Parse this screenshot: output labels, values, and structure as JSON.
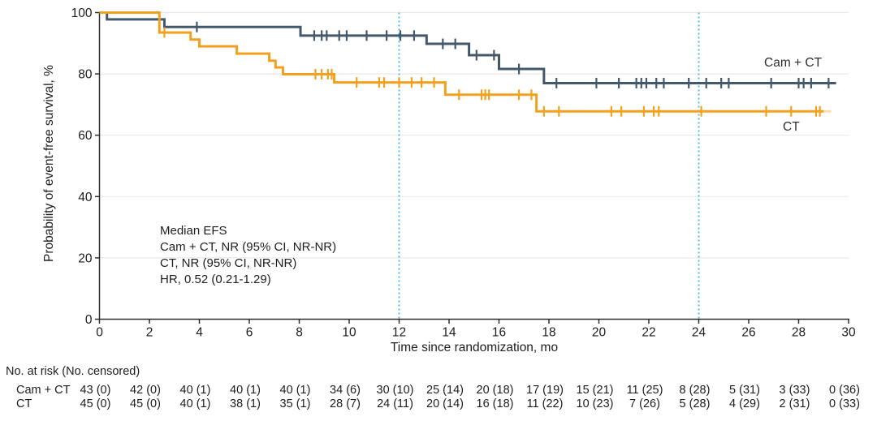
{
  "chart_data": {
    "type": "line",
    "subtype": "kaplan-meier-step",
    "title": "",
    "xlabel": "Time since randomization, mo",
    "ylabel": "Probability of event-free survival, %",
    "xlim": [
      0,
      30
    ],
    "ylim": [
      0,
      100
    ],
    "xticks": [
      0,
      2,
      4,
      6,
      8,
      10,
      12,
      14,
      16,
      18,
      20,
      22,
      24,
      26,
      28,
      30
    ],
    "yticks": [
      0,
      20,
      40,
      60,
      80,
      100
    ],
    "grid": "horizontal-light",
    "legend_position": "inline-right-of-curves",
    "reference_lines_x": [
      12,
      24
    ],
    "annotation": {
      "lines": [
        "Median EFS",
        "Cam + CT, NR (95% CI, NR-NR)",
        "CT, NR (95% CI, NR-NR)",
        "HR, 0.52 (0.21-1.29)"
      ]
    },
    "series": [
      {
        "name": "Cam + CT",
        "color": "#44586B",
        "steps": [
          [
            0,
            100
          ],
          [
            0.3,
            97.8
          ],
          [
            2.6,
            95.3
          ],
          [
            8.05,
            92.5
          ],
          [
            13.1,
            89.8
          ],
          [
            14.8,
            86.1
          ],
          [
            16.0,
            81.6
          ],
          [
            17.8,
            77.0
          ]
        ],
        "end_time": 29.5,
        "censor_times": [
          3.9,
          8.6,
          8.9,
          9.1,
          9.6,
          9.9,
          10.7,
          11.5,
          12.05,
          12.6,
          13.75,
          14.25,
          15.1,
          15.8,
          16.8,
          18.3,
          19.9,
          20.8,
          21.5,
          21.7,
          21.9,
          22.3,
          22.6,
          23.6,
          24.3,
          24.9,
          25.2,
          26.9,
          28.0,
          28.2,
          28.5,
          29.2
        ]
      },
      {
        "name": "CT",
        "color": "#F2A11E",
        "steps": [
          [
            0,
            100
          ],
          [
            2.4,
            93.5
          ],
          [
            3.65,
            91.2
          ],
          [
            4.0,
            89.0
          ],
          [
            5.5,
            86.6
          ],
          [
            6.8,
            84.3
          ],
          [
            7.05,
            82.1
          ],
          [
            7.35,
            79.9
          ],
          [
            9.4,
            77.2
          ],
          [
            13.85,
            73.2
          ],
          [
            17.5,
            67.8
          ]
        ],
        "end_time": 29.0,
        "tail_to": 29.3,
        "censor_times": [
          2.6,
          8.65,
          8.9,
          9.15,
          9.3,
          10.3,
          11.2,
          11.4,
          12.0,
          12.5,
          12.9,
          13.4,
          14.4,
          15.3,
          15.45,
          15.6,
          16.8,
          17.3,
          17.8,
          18.4,
          20.5,
          20.9,
          21.8,
          22.2,
          22.4,
          24.1,
          26.7,
          27.7,
          28.7,
          28.85
        ]
      }
    ],
    "colors": {
      "reference_line": "#3EB7E6",
      "grid": "#E9E9E9",
      "axis": "#2E2E2E",
      "text": "#1E1E1E"
    }
  },
  "risk_table": {
    "header": "No. at risk (No. censored)",
    "times": [
      0,
      2,
      4,
      6,
      8,
      10,
      12,
      14,
      16,
      18,
      20,
      22,
      24,
      26,
      28,
      30
    ],
    "rows": [
      {
        "label": "Cam + CT",
        "values": [
          "43 (0)",
          "42 (0)",
          "40 (1)",
          "40 (1)",
          "40 (1)",
          "34 (6)",
          "30 (10)",
          "25 (14)",
          "20 (18)",
          "17 (19)",
          "15 (21)",
          "11 (25)",
          "8 (28)",
          "5 (31)",
          "3 (33)",
          "0 (36)"
        ]
      },
      {
        "label": "CT",
        "values": [
          "45 (0)",
          "45 (0)",
          "40 (1)",
          "38 (1)",
          "35 (1)",
          "28 (7)",
          "24 (11)",
          "20 (14)",
          "16 (18)",
          "11 (22)",
          "10 (23)",
          "7 (26)",
          "5 (28)",
          "4 (29)",
          "2 (31)",
          "0 (33)"
        ]
      }
    ]
  }
}
